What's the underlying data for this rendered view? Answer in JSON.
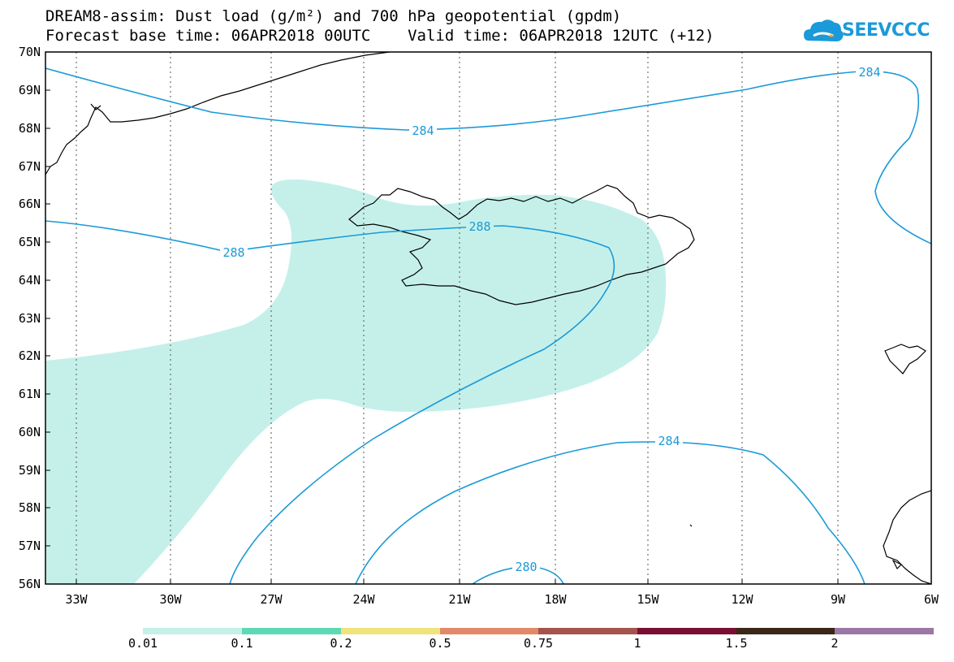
{
  "title_line1": "DREAM8-assim: Dust load (g/m²) and 700 hPa geopotential (gpdm)",
  "title_line2": "Forecast base time: 06APR2018 00UTC    Valid time: 06APR2018 12UTC (+12)",
  "logo_text": "SEEVCCC",
  "logo_icon": "cloud-icon",
  "map": {
    "lat_labels": [
      "70N",
      "69N",
      "68N",
      "67N",
      "66N",
      "65N",
      "64N",
      "63N",
      "62N",
      "61N",
      "60N",
      "59N",
      "58N",
      "57N",
      "56N"
    ],
    "lon_labels": [
      "33W",
      "30W",
      "27W",
      "24W",
      "21W",
      "18W",
      "15W",
      "12W",
      "9W",
      "6W"
    ],
    "dust_color": "#c5f0ea",
    "contour_color": "#1a9ad8",
    "contour_labels": [
      "284",
      "284",
      "288",
      "288",
      "284",
      "280"
    ]
  },
  "colorbar": {
    "labels": [
      "0.01",
      "0.1",
      "0.2",
      "0.5",
      "0.75",
      "1",
      "1.5",
      "2"
    ],
    "colors": [
      "#c5f0ea",
      "#5fd9b4",
      "#f1e37c",
      "#e3896a",
      "#a4534d",
      "#7a0f34",
      "#3a2717",
      "#9b77a6"
    ]
  }
}
